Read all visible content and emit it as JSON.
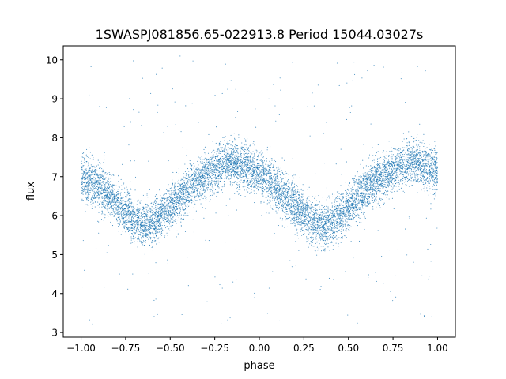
{
  "chart_data": {
    "type": "scatter",
    "title": "1SWASPJ081856.65-022913.8 Period 15044.03027s",
    "xlabel": "phase",
    "ylabel": "flux",
    "xlim": [
      -1.1,
      1.1
    ],
    "ylim": [
      2.88,
      10.36
    ],
    "xticks": [
      -1.0,
      -0.75,
      -0.5,
      -0.25,
      0.0,
      0.25,
      0.5,
      0.75,
      1.0
    ],
    "xtick_labels": [
      "−1.00",
      "−0.75",
      "−0.50",
      "−0.25",
      "0.00",
      "0.25",
      "0.50",
      "0.75",
      "1.00"
    ],
    "yticks": [
      3,
      4,
      5,
      6,
      7,
      8,
      9,
      10
    ],
    "ytick_labels": [
      "3",
      "4",
      "5",
      "6",
      "7",
      "8",
      "9",
      "10"
    ],
    "marker_color": "#1f77b4",
    "grid": false,
    "legend": "none",
    "trend": {
      "phase": [
        -1.0,
        -0.9,
        -0.8,
        -0.7,
        -0.65,
        -0.6,
        -0.5,
        -0.4,
        -0.3,
        -0.2,
        -0.15,
        -0.1,
        0.0,
        0.1,
        0.2,
        0.3,
        0.35,
        0.4,
        0.5,
        0.6,
        0.7,
        0.8,
        0.85,
        0.9,
        1.0
      ],
      "flux": [
        7.0,
        6.75,
        6.3,
        5.85,
        5.75,
        5.8,
        6.2,
        6.7,
        7.05,
        7.3,
        7.35,
        7.3,
        7.1,
        6.7,
        6.25,
        5.85,
        5.75,
        5.8,
        6.2,
        6.7,
        7.05,
        7.3,
        7.35,
        7.3,
        7.15
      ]
    },
    "scatter_sd": 0.28,
    "point_count": 9000,
    "outlier_count": 260
  }
}
